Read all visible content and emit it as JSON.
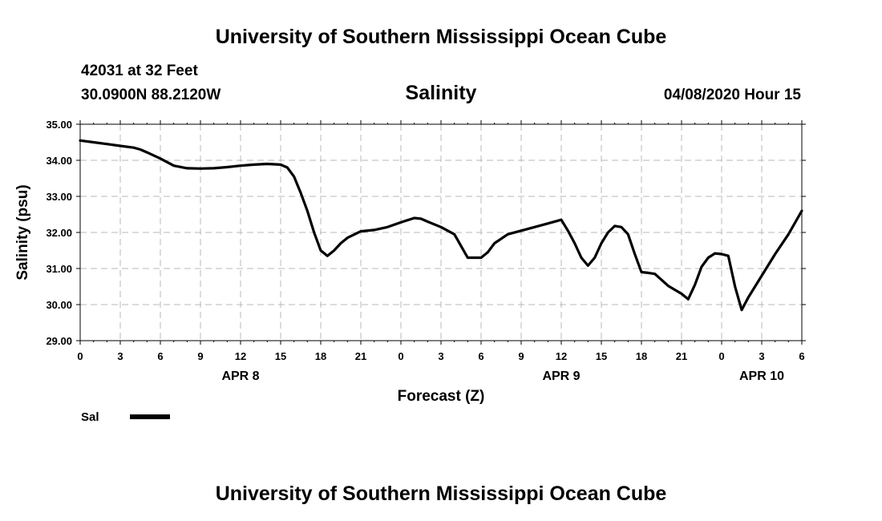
{
  "header": {
    "title": "University of Southern Mississippi Ocean Cube",
    "station": "42031 at 32 Feet",
    "location": "30.0900N 88.2120W",
    "parameter": "Salinity",
    "datetime": "04/08/2020 Hour 15"
  },
  "footer": {
    "title": "University of Southern Mississippi Ocean Cube"
  },
  "chart_data": {
    "type": "line",
    "xlabel": "Forecast (Z)",
    "ylabel": "Salinity (psu)",
    "xlim": [
      0,
      54
    ],
    "ylim": [
      29.0,
      35.0
    ],
    "yticks": [
      "29.00",
      "30.00",
      "31.00",
      "32.00",
      "33.00",
      "34.00",
      "35.00"
    ],
    "xticks": [
      "0",
      "3",
      "6",
      "9",
      "12",
      "15",
      "18",
      "21",
      "0",
      "3",
      "6",
      "9",
      "12",
      "15",
      "18",
      "21",
      "0",
      "3",
      "6"
    ],
    "day_labels": [
      {
        "label": "APR 8",
        "at": 12
      },
      {
        "label": "APR 9",
        "at": 36
      },
      {
        "label": "APR 10",
        "at": 51
      }
    ],
    "grid": true,
    "legend_position": "bottom-left",
    "series": [
      {
        "name": "Sal",
        "color": "#000000",
        "x": [
          0,
          1,
          2,
          3,
          4,
          4.5,
          5,
          6,
          7,
          8,
          9,
          10,
          11,
          12,
          13,
          14,
          15,
          15.5,
          16,
          16.5,
          17,
          17.5,
          18,
          18.5,
          19,
          19.5,
          20,
          21,
          22,
          23,
          24,
          25,
          25.5,
          26,
          27,
          28,
          29,
          30,
          30.5,
          31,
          32,
          33,
          34,
          35,
          36,
          36.5,
          37,
          37.5,
          38,
          38.5,
          39,
          39.5,
          40,
          40.5,
          41,
          41.5,
          42,
          42.5,
          43,
          44,
          45,
          45.5,
          46,
          46.5,
          47,
          47.5,
          48,
          48.5,
          49,
          49.5,
          50,
          51,
          52,
          53,
          54
        ],
        "values": [
          34.55,
          34.5,
          34.45,
          34.4,
          34.35,
          34.3,
          34.22,
          34.05,
          33.85,
          33.78,
          33.77,
          33.78,
          33.81,
          33.85,
          33.88,
          33.9,
          33.88,
          33.8,
          33.55,
          33.1,
          32.6,
          32.0,
          31.5,
          31.35,
          31.5,
          31.7,
          31.85,
          32.03,
          32.07,
          32.15,
          32.28,
          32.4,
          32.38,
          32.3,
          32.15,
          31.95,
          31.3,
          31.3,
          31.45,
          31.7,
          31.95,
          32.05,
          32.15,
          32.25,
          32.35,
          32.05,
          31.7,
          31.3,
          31.08,
          31.3,
          31.7,
          32.0,
          32.18,
          32.15,
          31.95,
          31.4,
          30.9,
          30.88,
          30.85,
          30.52,
          30.3,
          30.15,
          30.55,
          31.05,
          31.3,
          31.42,
          31.4,
          31.35,
          30.5,
          29.85,
          30.2,
          30.8,
          31.4,
          31.95,
          32.6
        ]
      }
    ]
  }
}
